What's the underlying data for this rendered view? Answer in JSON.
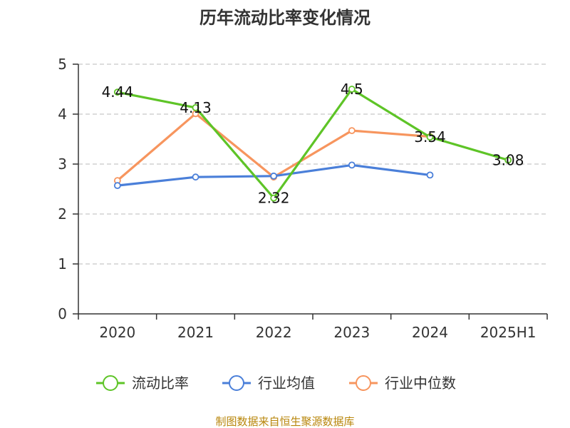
{
  "chart_data": {
    "type": "line",
    "title": "历年流动比率变化情况",
    "xlabel": "",
    "ylabel": "",
    "categories": [
      "2020",
      "2021",
      "2022",
      "2023",
      "2024",
      "2025H1"
    ],
    "ylim": [
      0,
      5
    ],
    "yticks": [
      "0",
      "1",
      "2",
      "3",
      "4",
      "5"
    ],
    "grid": true,
    "legend_position": "bottom",
    "series": [
      {
        "name": "流动比率",
        "color": "#5ec427",
        "values": [
          4.44,
          4.13,
          2.32,
          4.5,
          3.54,
          3.08
        ],
        "labels": [
          "4.44",
          "4.13",
          "2.32",
          "4.5",
          "3.54",
          "3.08"
        ]
      },
      {
        "name": "行业均值",
        "color": "#4a7fd9",
        "values": [
          2.57,
          2.74,
          2.76,
          2.98,
          2.78,
          null
        ]
      },
      {
        "name": "行业中位数",
        "color": "#f7955e",
        "values": [
          2.67,
          4.01,
          2.74,
          3.67,
          3.55,
          null
        ]
      }
    ]
  },
  "source": "制图数据来自恒生聚源数据库"
}
